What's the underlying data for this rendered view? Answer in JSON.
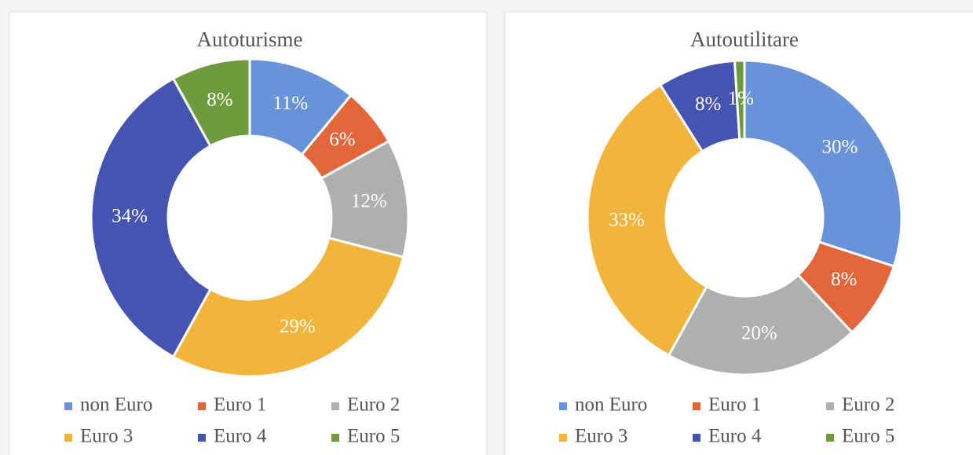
{
  "chart_data": [
    {
      "type": "donut",
      "title": "Autoturisme",
      "categories": [
        "non Euro",
        "Euro 1",
        "Euro 2",
        "Euro 3",
        "Euro 4",
        "Euro 5"
      ],
      "values": [
        11,
        6,
        12,
        29,
        34,
        8
      ],
      "value_labels": [
        "11%",
        "6%",
        "12%",
        "29%",
        "34%",
        "8%"
      ],
      "colors": [
        "#6893d8",
        "#e2663a",
        "#aeb0b0",
        "#f3b43c",
        "#4454b0",
        "#6e9b3c"
      ]
    },
    {
      "type": "donut",
      "title": "Autoutilitare",
      "categories": [
        "non Euro",
        "Euro 1",
        "Euro 2",
        "Euro 3",
        "Euro 4",
        "Euro 5"
      ],
      "values": [
        30,
        8,
        20,
        33,
        8,
        1
      ],
      "value_labels": [
        "30%",
        "8%",
        "20%",
        "33%",
        "8%",
        "1%"
      ],
      "colors": [
        "#6893d8",
        "#e2663a",
        "#aeb0b0",
        "#f3b43c",
        "#4454b0",
        "#6e9b3c"
      ]
    }
  ]
}
